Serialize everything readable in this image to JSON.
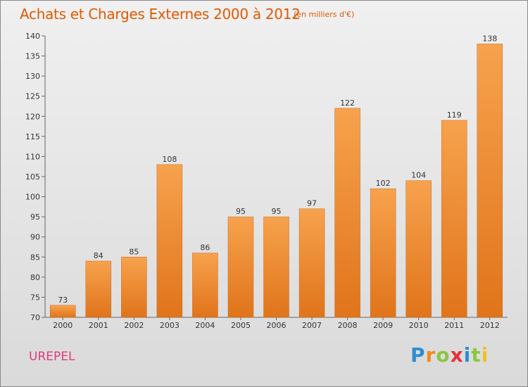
{
  "chart_data": {
    "type": "bar",
    "title": "Achats et Charges Externes 2000 à 2012",
    "subtitle": "(en milliers d'€)",
    "categories": [
      "2000",
      "2001",
      "2002",
      "2003",
      "2004",
      "2005",
      "2006",
      "2007",
      "2008",
      "2009",
      "2010",
      "2011",
      "2012"
    ],
    "values": [
      73,
      84,
      85,
      108,
      86,
      95,
      95,
      97,
      122,
      102,
      104,
      119,
      138
    ],
    "ylim": [
      70,
      140
    ],
    "yticks": [
      70,
      75,
      80,
      85,
      90,
      95,
      100,
      105,
      110,
      115,
      120,
      125,
      130,
      135,
      140
    ],
    "grid": false,
    "legend": "none",
    "colors": {
      "bar_light": "#f7a24e",
      "bar_dark": "#e0741a",
      "bar_stroke": "#c96a1c",
      "title": "#e05a00"
    }
  },
  "commune": "UREPEL",
  "logo": {
    "letters": [
      {
        "ch": "P",
        "color": "#2a8fd4"
      },
      {
        "ch": "r",
        "color": "#f28a1e"
      },
      {
        "ch": "o",
        "color": "#8cc63f"
      },
      {
        "ch": "x",
        "color": "#e8303a"
      },
      {
        "ch": "i",
        "color": "#2a8fd4"
      },
      {
        "ch": "t",
        "color": "#8cc63f"
      },
      {
        "ch": "i",
        "color": "#f2c01e"
      }
    ]
  }
}
